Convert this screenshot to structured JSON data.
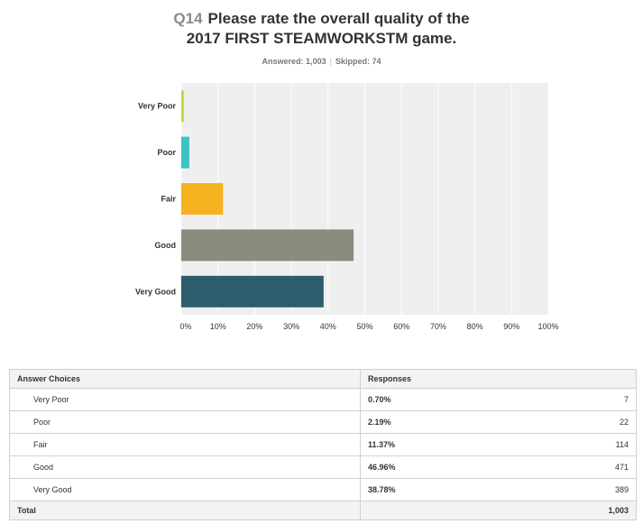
{
  "header": {
    "qnum": "Q14",
    "title_line1": "Please rate the overall quality of the",
    "title_line2": "2017 FIRST STEAMWORKSTM game."
  },
  "stats": {
    "answered": "Answered: 1,003",
    "skipped": "Skipped: 74"
  },
  "chart_data": {
    "type": "bar",
    "orientation": "horizontal",
    "categories": [
      "Very Poor",
      "Poor",
      "Fair",
      "Good",
      "Very Good"
    ],
    "values": [
      0.7,
      2.19,
      11.37,
      46.96,
      38.78
    ],
    "colors": [
      "#c6d63a",
      "#3fc1c2",
      "#f5b21e",
      "#8c8c7e",
      "#2d5d6c"
    ],
    "xlim": [
      0,
      100
    ],
    "xticks": [
      "0%",
      "10%",
      "20%",
      "30%",
      "40%",
      "50%",
      "60%",
      "70%",
      "80%",
      "90%",
      "100%"
    ],
    "grid": true,
    "title": "",
    "xlabel": "",
    "ylabel": ""
  },
  "table": {
    "headers": [
      "Answer Choices",
      "Responses"
    ],
    "rows": [
      {
        "choice": "Very Poor",
        "percent": "0.70%",
        "count": "7"
      },
      {
        "choice": "Poor",
        "percent": "2.19%",
        "count": "22"
      },
      {
        "choice": "Fair",
        "percent": "11.37%",
        "count": "114"
      },
      {
        "choice": "Good",
        "percent": "46.96%",
        "count": "471"
      },
      {
        "choice": "Very Good",
        "percent": "38.78%",
        "count": "389"
      }
    ],
    "total_label": "Total",
    "total_count": "1,003"
  }
}
